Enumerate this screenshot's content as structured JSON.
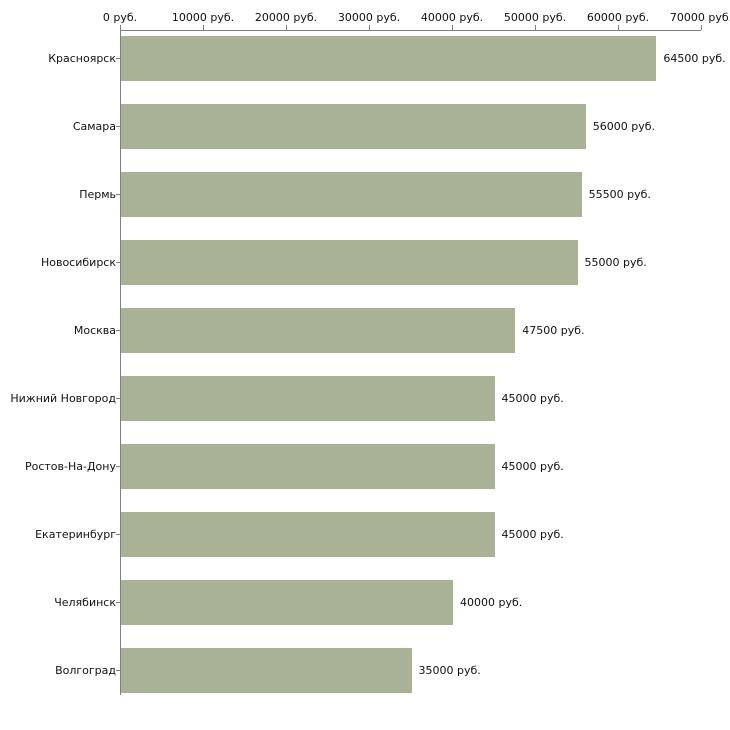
{
  "chart_data": {
    "type": "bar",
    "orientation": "horizontal",
    "title": "",
    "categories": [
      "Красноярск",
      "Самара",
      "Пермь",
      "Новосибирск",
      "Москва",
      "Нижний Новгород",
      "Ростов-На-Дону",
      "Екатеринбург",
      "Челябинск",
      "Волгоград"
    ],
    "values": [
      64500,
      56000,
      55500,
      55000,
      47500,
      45000,
      45000,
      45000,
      40000,
      35000
    ],
    "value_labels": [
      "64500 руб.",
      "56000 руб.",
      "55500 руб.",
      "55000 руб.",
      "47500 руб.",
      "45000 руб.",
      "45000 руб.",
      "45000 руб.",
      "40000 руб.",
      "35000 руб."
    ],
    "x_ticks": [
      0,
      10000,
      20000,
      30000,
      40000,
      50000,
      60000,
      70000
    ],
    "x_tick_labels": [
      "0 руб.",
      "10000 руб.",
      "20000 руб.",
      "30000 руб.",
      "40000 руб.",
      "50000 руб.",
      "60000 руб.",
      "70000 руб."
    ],
    "xlim": [
      0,
      70000
    ],
    "xlabel": "",
    "ylabel": "",
    "legend": null,
    "grid": false,
    "axis_position": "top",
    "bar_color": "#a9b296",
    "axis_color": "#808080",
    "text_color": "#111111",
    "background_color": "#ffffff"
  }
}
